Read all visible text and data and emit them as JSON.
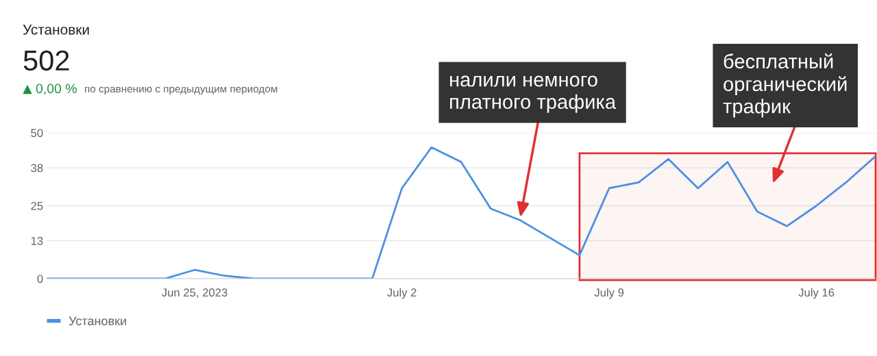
{
  "chart_data": {
    "type": "line",
    "title": "Установки",
    "subtitle": "502",
    "annotations": [
      "0,00 %",
      "по сравнению с предыдущим периодом",
      {
        "text": "налили немного платного трафика",
        "x": "2023-07-06",
        "y": 21
      },
      "бесплатный органический трафик"
    ],
    "x": [
      "2023-06-20",
      "2023-06-21",
      "2023-06-22",
      "2023-06-23",
      "2023-06-24",
      "2023-06-25",
      "2023-06-26",
      "2023-06-27",
      "2023-06-28",
      "2023-06-29",
      "2023-06-30",
      "2023-07-01",
      "2023-07-02",
      "2023-07-03",
      "2023-07-04",
      "2023-07-05",
      "2023-07-06",
      "2023-07-07",
      "2023-07-08",
      "2023-07-09",
      "2023-07-10",
      "2023-07-11",
      "2023-07-12",
      "2023-07-13",
      "2023-07-14",
      "2023-07-15",
      "2023-07-16",
      "2023-07-17",
      "2023-07-18"
    ],
    "series": [
      {
        "name": "Установки",
        "color": "#4a90e2",
        "values": [
          0,
          0,
          0,
          0,
          0,
          3,
          1,
          0,
          0,
          0,
          0,
          0,
          31,
          45,
          40,
          24,
          20,
          14,
          8,
          31,
          33,
          41,
          31,
          40,
          23,
          18,
          25,
          33,
          42
        ]
      }
    ],
    "xlim": [
      "2023-06-20",
      "2023-07-18"
    ],
    "xticks": [
      {
        "value": "2023-06-25",
        "label": "Jun 25, 2023"
      },
      {
        "value": "2023-07-02",
        "label": "July 2"
      },
      {
        "value": "2023-07-09",
        "label": "July 9"
      },
      {
        "value": "2023-07-16",
        "label": "July 16"
      }
    ],
    "ylim": [
      0,
      50
    ],
    "yticks": [
      0,
      13,
      25,
      38,
      50
    ],
    "bands": [
      {
        "axis": "x",
        "from": "2023-07-08",
        "to": "2023-07-18",
        "color": "#e03030"
      }
    ],
    "grid": "y",
    "legend": "bottom",
    "marker": "none",
    "line_style": "solid"
  }
}
